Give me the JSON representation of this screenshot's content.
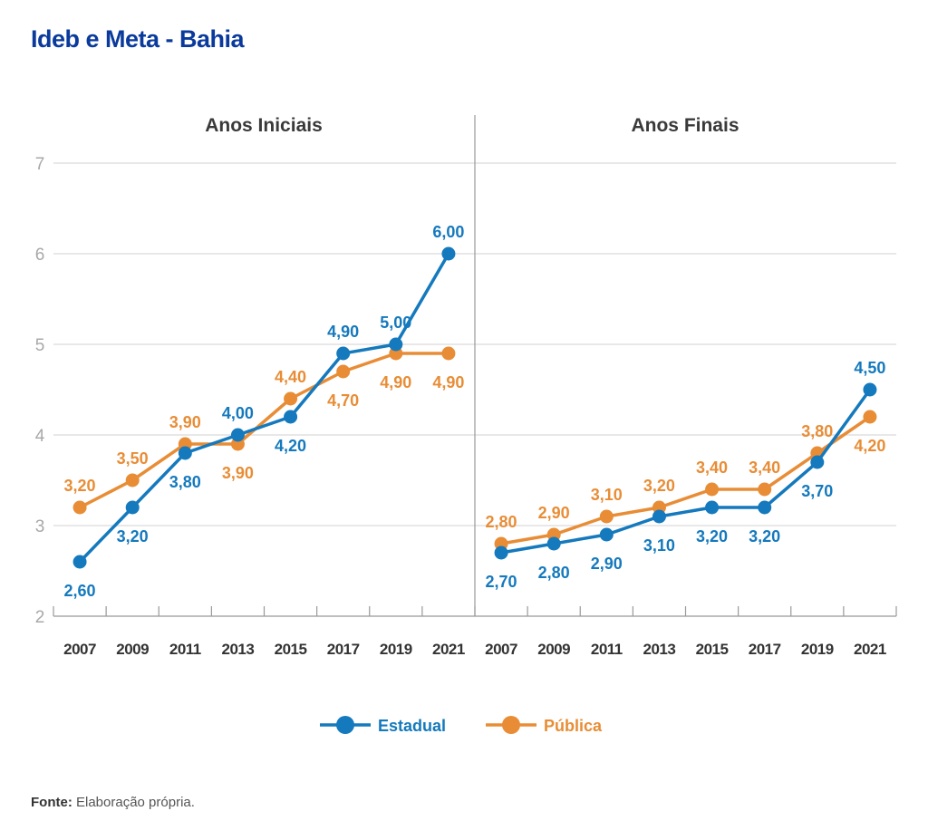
{
  "title": "Ideb e Meta - Bahia",
  "source": {
    "label": "Fonte:",
    "text": "Elaboração própria."
  },
  "colors": {
    "estadual": "#1479bd",
    "publica": "#e88d36",
    "grid": "#d9d9d9",
    "axis": "#999999"
  },
  "legend": [
    {
      "key": "estadual",
      "label": "Estadual"
    },
    {
      "key": "publica",
      "label": "Pública"
    }
  ],
  "chart_data": [
    {
      "type": "line",
      "title": "Anos Iniciais",
      "x": [
        "2007",
        "2009",
        "2011",
        "2013",
        "2015",
        "2017",
        "2019",
        "2021"
      ],
      "ylim": [
        2,
        7
      ],
      "yticks": [
        2,
        3,
        4,
        5,
        6,
        7
      ],
      "grid": true,
      "legend_position": "bottom",
      "series": [
        {
          "name": "Estadual",
          "key": "estadual",
          "values": [
            2.6,
            3.2,
            3.8,
            4.0,
            4.2,
            4.9,
            5.0,
            6.0
          ],
          "labels": [
            "2,60",
            "3,20",
            "3,80",
            "4,00",
            "4,20",
            "4,90",
            "5,00",
            "6,00"
          ],
          "label_pos": [
            "below",
            "below",
            "below",
            "above",
            "below",
            "above",
            "above",
            "above"
          ]
        },
        {
          "name": "Pública",
          "key": "publica",
          "values": [
            3.2,
            3.5,
            3.9,
            3.9,
            4.4,
            4.7,
            4.9,
            4.9
          ],
          "labels": [
            "3,20",
            "3,50",
            "3,90",
            "3,90",
            "4,40",
            "4,70",
            "4,90",
            "4,90"
          ],
          "label_pos": [
            "above",
            "above",
            "above",
            "below",
            "above",
            "below",
            "below",
            "below"
          ]
        }
      ]
    },
    {
      "type": "line",
      "title": "Anos Finais",
      "x": [
        "2007",
        "2009",
        "2011",
        "2013",
        "2015",
        "2017",
        "2019",
        "2021"
      ],
      "ylim": [
        2,
        7
      ],
      "yticks": [
        2,
        3,
        4,
        5,
        6,
        7
      ],
      "grid": true,
      "legend_position": "bottom",
      "series": [
        {
          "name": "Estadual",
          "key": "estadual",
          "values": [
            2.7,
            2.8,
            2.9,
            3.1,
            3.2,
            3.2,
            3.7,
            4.5
          ],
          "labels": [
            "2,70",
            "2,80",
            "2,90",
            "3,10",
            "3,20",
            "3,20",
            "3,70",
            "4,50"
          ],
          "label_pos": [
            "below",
            "below",
            "below",
            "below",
            "below",
            "below",
            "below",
            "above"
          ]
        },
        {
          "name": "Pública",
          "key": "publica",
          "values": [
            2.8,
            2.9,
            3.1,
            3.2,
            3.4,
            3.4,
            3.8,
            4.2
          ],
          "labels": [
            "2,80",
            "2,90",
            "3,10",
            "3,20",
            "3,40",
            "3,40",
            "3,80",
            "4,20"
          ],
          "label_pos": [
            "above",
            "above",
            "above",
            "above",
            "above",
            "above",
            "above",
            "below"
          ]
        }
      ]
    }
  ]
}
